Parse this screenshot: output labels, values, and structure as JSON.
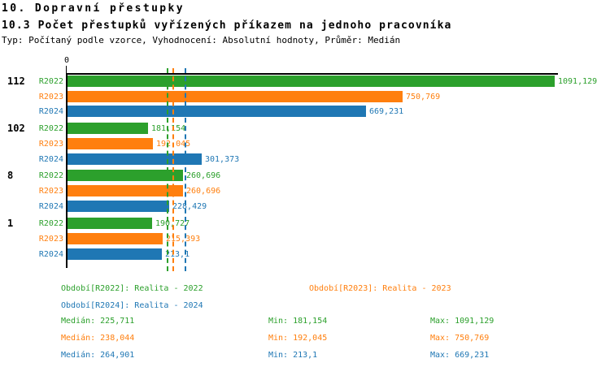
{
  "header": {
    "title": "10. Dopravní přestupky",
    "subtitle": "10.3 Počet přestupků vyřízených příkazem na jednoho pracovníka",
    "meta": "Typ: Počítaný podle vzorce, Vyhodnocení: Absolutní hodnoty, Průměr: Medián"
  },
  "chart_data": {
    "type": "bar",
    "orientation": "horizontal",
    "title": "10.3 Počet přestupků vyřízených příkazem na jednoho pracovníka",
    "x_origin_label": "0",
    "xlim": [
      0,
      1091.129
    ],
    "grid": false,
    "legend_position": "bottom",
    "categories": [
      "112",
      "102",
      "8",
      "1"
    ],
    "series": [
      {
        "name": "R2022",
        "legend_label": "Období[R2022]: Realita - 2022",
        "color": "#2ca02c",
        "values": [
          1091.129,
          181.154,
          260.696,
          190.727
        ],
        "value_labels": [
          "1091,129",
          "181,154",
          "260,696",
          "190,727"
        ],
        "median": 225.711,
        "stats": {
          "median": "Medián: 225,711",
          "min": "Min: 181,154",
          "max": "Max: 1091,129"
        }
      },
      {
        "name": "R2023",
        "legend_label": "Období[R2023]: Realita - 2023",
        "color": "#ff7f0e",
        "values": [
          750.769,
          192.045,
          260.696,
          215.393
        ],
        "value_labels": [
          "750,769",
          "192,045",
          "260,696",
          "215,393"
        ],
        "median": 238.044,
        "stats": {
          "median": "Medián: 238,044",
          "min": "Min: 192,045",
          "max": "Max: 750,769"
        }
      },
      {
        "name": "R2024",
        "legend_label": "Období[R2024]: Realita - 2024",
        "color": "#1f77b4",
        "values": [
          669.231,
          301.373,
          228.429,
          213.1
        ],
        "value_labels": [
          "669,231",
          "301,373",
          "228,429",
          "213,1"
        ],
        "median": 264.901,
        "stats": {
          "median": "Medián: 264,901",
          "min": "Min: 213,1",
          "max": "Max: 669,231"
        }
      }
    ]
  }
}
